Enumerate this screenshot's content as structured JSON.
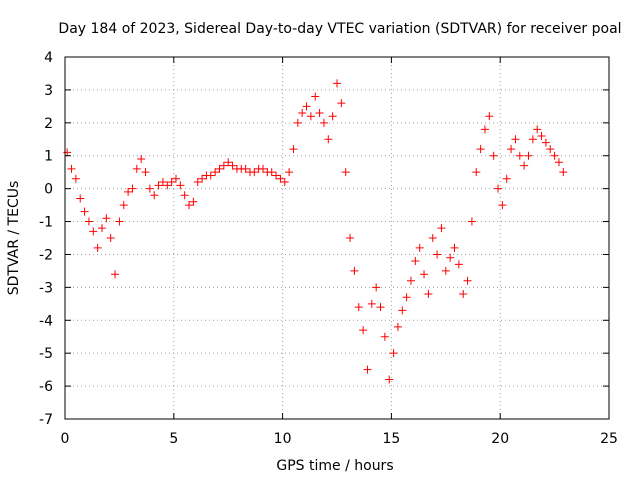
{
  "chart_data": {
    "type": "scatter",
    "title": "Day 184 of 2023, Sidereal Day-to-day VTEC variation (SDTVAR) for receiver poal",
    "xlabel": "GPS time / hours",
    "ylabel": "SDTVAR / TECUs",
    "xlim": [
      0,
      25
    ],
    "ylim": [
      -7,
      4
    ],
    "xticks": [
      "0",
      "5",
      "10",
      "15",
      "20",
      "25"
    ],
    "yticks": [
      "-7",
      "-6",
      "-5",
      "-4",
      "-3",
      "-2",
      "-1",
      "0",
      "1",
      "2",
      "3",
      "4"
    ],
    "grid": true,
    "marker": "+",
    "color": "#ff0000",
    "series": [
      {
        "name": "SDTVAR",
        "x": [
          0.1,
          0.3,
          0.5,
          0.7,
          0.9,
          1.1,
          1.3,
          1.5,
          1.7,
          1.9,
          2.1,
          2.3,
          2.5,
          2.7,
          2.9,
          3.1,
          3.3,
          3.5,
          3.7,
          3.9,
          4.1,
          4.3,
          4.5,
          4.7,
          4.9,
          5.1,
          5.3,
          5.5,
          5.7,
          5.9,
          6.1,
          6.3,
          6.5,
          6.7,
          6.9,
          7.1,
          7.3,
          7.5,
          7.7,
          7.9,
          8.1,
          8.3,
          8.5,
          8.7,
          8.9,
          9.1,
          9.3,
          9.5,
          9.7,
          9.9,
          10.1,
          10.3,
          10.5,
          10.7,
          10.9,
          11.1,
          11.3,
          11.5,
          11.7,
          11.9,
          12.1,
          12.3,
          12.5,
          12.7,
          12.9,
          13.1,
          13.3,
          13.5,
          13.7,
          13.9,
          14.1,
          14.3,
          14.5,
          14.7,
          14.9,
          15.1,
          15.3,
          15.5,
          15.7,
          15.9,
          16.1,
          16.3,
          16.5,
          16.7,
          16.9,
          17.1,
          17.3,
          17.5,
          17.7,
          17.9,
          18.1,
          18.3,
          18.5,
          18.7,
          18.9,
          19.1,
          19.3,
          19.5,
          19.7,
          19.9,
          20.1,
          20.3,
          20.5,
          20.7,
          20.9,
          21.1,
          21.3,
          21.5,
          21.7,
          21.9,
          22.1,
          22.3,
          22.5,
          22.7,
          22.9
        ],
        "y": [
          1.1,
          0.6,
          0.3,
          -0.3,
          -0.7,
          -1.0,
          -1.3,
          -1.8,
          -1.2,
          -0.9,
          -1.5,
          -2.6,
          -1.0,
          -0.5,
          -0.1,
          0.0,
          0.6,
          0.9,
          0.5,
          0.0,
          -0.2,
          0.1,
          0.2,
          0.1,
          0.2,
          0.3,
          0.1,
          -0.2,
          -0.5,
          -0.4,
          0.2,
          0.3,
          0.4,
          0.4,
          0.5,
          0.6,
          0.7,
          0.8,
          0.7,
          0.6,
          0.6,
          0.6,
          0.5,
          0.5,
          0.6,
          0.6,
          0.5,
          0.5,
          0.4,
          0.3,
          0.2,
          0.5,
          1.2,
          2.0,
          2.3,
          2.5,
          2.2,
          2.8,
          2.3,
          2.0,
          1.5,
          2.2,
          3.2,
          2.6,
          0.5,
          -1.5,
          -2.5,
          -3.6,
          -4.3,
          -5.5,
          -3.5,
          -3.0,
          -3.6,
          -4.5,
          -5.8,
          -5.0,
          -4.2,
          -3.7,
          -3.3,
          -2.8,
          -2.2,
          -1.8,
          -2.6,
          -3.2,
          -1.5,
          -2.0,
          -1.2,
          -2.5,
          -2.1,
          -1.8,
          -2.3,
          -3.2,
          -2.8,
          -1.0,
          0.5,
          1.2,
          1.8,
          2.2,
          1.0,
          0.0,
          -0.5,
          0.3,
          1.2,
          1.5,
          1.0,
          0.7,
          1.0,
          1.5,
          1.8,
          1.6,
          1.4,
          1.2,
          1.0,
          0.8,
          0.5
        ]
      }
    ]
  }
}
